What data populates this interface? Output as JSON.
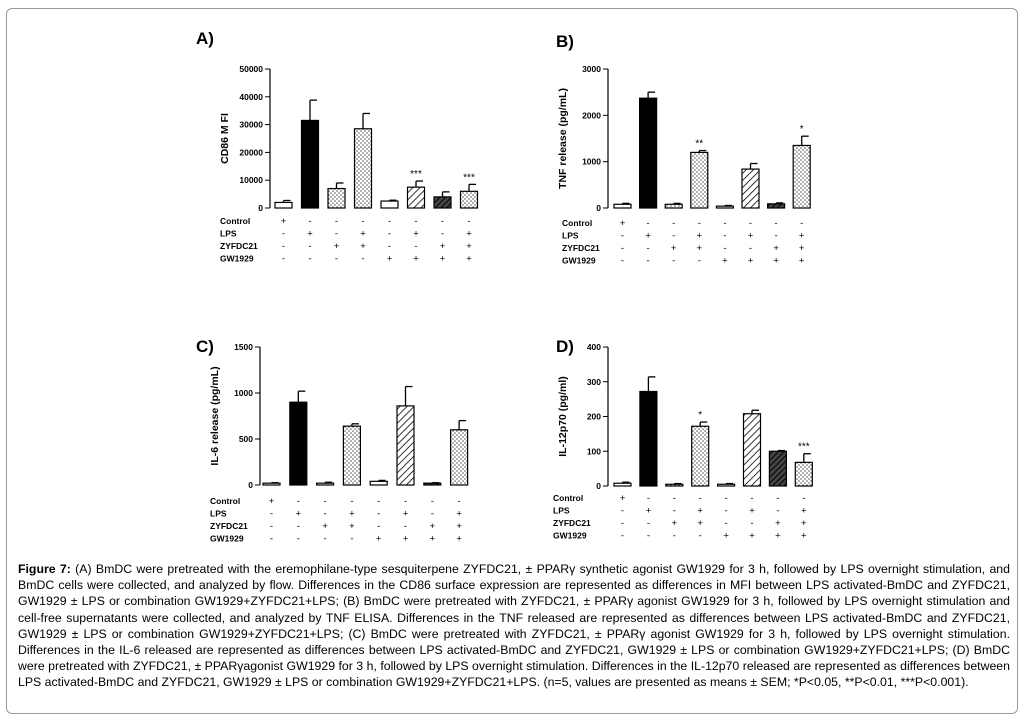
{
  "caption": {
    "label": "Figure 7:",
    "text": " (A) BmDC were pretreated with the eremophilane-type sesquiterpene ZYFDC21, ± PPARγ synthetic agonist GW1929 for 3 h, followed by LPS overnight stimulation, and BmDC cells were collected, and analyzed by flow. Differences in the CD86 surface expression are represented as differences in MFI between LPS activated-BmDC and ZYFDC21, GW1929 ± LPS or combination GW1929+ZYFDC21+LPS; (B) BmDC were pretreated with ZYFDC21, ± PPARγ agonist GW1929 for 3 h, followed by LPS overnight stimulation and cell-free supernatants were collected, and analyzed by TNF ELISA. Differences in the TNF released are represented as differences between LPS activated-BmDC and ZYFDC21, GW1929 ± LPS or combination GW1929+ZYFDC21+LPS; (C) BmDC were pretreated with ZYFDC21, ± PPARγ agonist GW1929 for 3 h, followed by LPS overnight stimulation. Differences in the IL-6 released are represented as differences between LPS activated-BmDC and ZYFDC21, GW1929 ± LPS or combination GW1929+ZYFDC21+LPS; (D) BmDC were pretreated with ZYFDC21, ± PPARγagonist GW1929 for 3 h, followed by LPS overnight stimulation. Differences in the IL-12p70 released are represented as differences between LPS activated-BmDC and ZYFDC21, GW1929 ± LPS or combination GW1929+ZYFDC21+LPS. (n=5, values are presented as means ± SEM; *P<0.05, **P<0.01, ***P<0.001)."
  },
  "styles": {
    "fills": [
      "white",
      "black",
      "dots",
      "dots",
      "white",
      "hatch",
      "dark",
      "dots"
    ]
  },
  "chart_data": [
    {
      "panel": "A)",
      "type": "bar",
      "ylabel": "CD86 M FI",
      "ylim": [
        0,
        50000
      ],
      "yticks": [
        0,
        10000,
        20000,
        30000,
        40000,
        50000
      ],
      "values": [
        2000,
        31500,
        7000,
        28500,
        2500,
        7500,
        4000,
        6000
      ],
      "errors": [
        700,
        7300,
        2000,
        5500,
        300,
        2200,
        1800,
        2500
      ],
      "sig": [
        "",
        "",
        "",
        "",
        "",
        "***",
        "",
        "***"
      ],
      "conditions": [
        {
          "name": "Control",
          "signs": [
            "+",
            "-",
            "-",
            "-",
            "-",
            "-",
            "-",
            "-"
          ]
        },
        {
          "name": "LPS",
          "signs": [
            "-",
            "+",
            "-",
            "+",
            "-",
            "+",
            "-",
            "+"
          ]
        },
        {
          "name": "ZYFDC21",
          "signs": [
            "-",
            "-",
            "+",
            "+",
            "-",
            "-",
            "+",
            "+"
          ]
        },
        {
          "name": "GW1929",
          "signs": [
            "-",
            "-",
            "-",
            "-",
            "+",
            "+",
            "+",
            "+"
          ]
        }
      ]
    },
    {
      "panel": "B)",
      "type": "bar",
      "ylabel": "TNF release (pg/mL)",
      "ylim": [
        0,
        3000
      ],
      "yticks": [
        0,
        1000,
        2000,
        3000
      ],
      "values": [
        80,
        2370,
        80,
        1200,
        40,
        840,
        90,
        1350
      ],
      "errors": [
        20,
        130,
        20,
        40,
        15,
        120,
        20,
        200
      ],
      "sig": [
        "",
        "",
        "",
        "**",
        "",
        "",
        "",
        "*"
      ],
      "conditions": [
        {
          "name": "Control",
          "signs": [
            "+",
            "-",
            "-",
            "-",
            "-",
            "-",
            "-",
            "-"
          ]
        },
        {
          "name": "LPS",
          "signs": [
            "-",
            "+",
            "-",
            "+",
            "-",
            "+",
            "-",
            "+"
          ]
        },
        {
          "name": "ZYFDC21",
          "signs": [
            "-",
            "-",
            "+",
            "+",
            "-",
            "-",
            "+",
            "+"
          ]
        },
        {
          "name": "GW1929",
          "signs": [
            "-",
            "-",
            "-",
            "-",
            "+",
            "+",
            "+",
            "+"
          ]
        }
      ]
    },
    {
      "panel": "C)",
      "type": "bar",
      "ylabel": "IL-6 release (pg/mL)",
      "ylim": [
        0,
        1500
      ],
      "yticks": [
        0,
        500,
        1000,
        1500
      ],
      "values": [
        20,
        900,
        20,
        640,
        40,
        860,
        20,
        600
      ],
      "errors": [
        5,
        120,
        10,
        25,
        10,
        210,
        5,
        100
      ],
      "sig": [
        "",
        "",
        "",
        "",
        "",
        "",
        "",
        ""
      ],
      "conditions": [
        {
          "name": "Control",
          "signs": [
            "+",
            "-",
            "-",
            "-",
            "-",
            "-",
            "-",
            "-"
          ]
        },
        {
          "name": "LPS",
          "signs": [
            "-",
            "+",
            "-",
            "+",
            "-",
            "+",
            "-",
            "+"
          ]
        },
        {
          "name": "ZYFDC21",
          "signs": [
            "-",
            "-",
            "+",
            "+",
            "-",
            "-",
            "+",
            "+"
          ]
        },
        {
          "name": "GW1929",
          "signs": [
            "-",
            "-",
            "-",
            "-",
            "+",
            "+",
            "+",
            "+"
          ]
        }
      ]
    },
    {
      "panel": "D)",
      "type": "bar",
      "ylabel": "IL-12p70 (pg/ml)",
      "ylim": [
        0,
        400
      ],
      "yticks": [
        0,
        100,
        200,
        300,
        400
      ],
      "values": [
        8,
        272,
        5,
        172,
        5,
        208,
        100,
        68
      ],
      "errors": [
        3,
        42,
        2,
        12,
        2,
        10,
        2,
        25
      ],
      "sig": [
        "",
        "",
        "",
        "*",
        "",
        "",
        "",
        "***"
      ],
      "conditions": [
        {
          "name": "Control",
          "signs": [
            "+",
            "-",
            "-",
            "-",
            "-",
            "-",
            "-",
            "-"
          ]
        },
        {
          "name": "LPS",
          "signs": [
            "-",
            "+",
            "-",
            "+",
            "-",
            "+",
            "-",
            "+"
          ]
        },
        {
          "name": "ZYFDC21",
          "signs": [
            "-",
            "-",
            "+",
            "+",
            "-",
            "-",
            "+",
            "+"
          ]
        },
        {
          "name": "GW1929",
          "signs": [
            "-",
            "-",
            "-",
            "-",
            "+",
            "+",
            "+",
            "+"
          ]
        }
      ]
    }
  ]
}
